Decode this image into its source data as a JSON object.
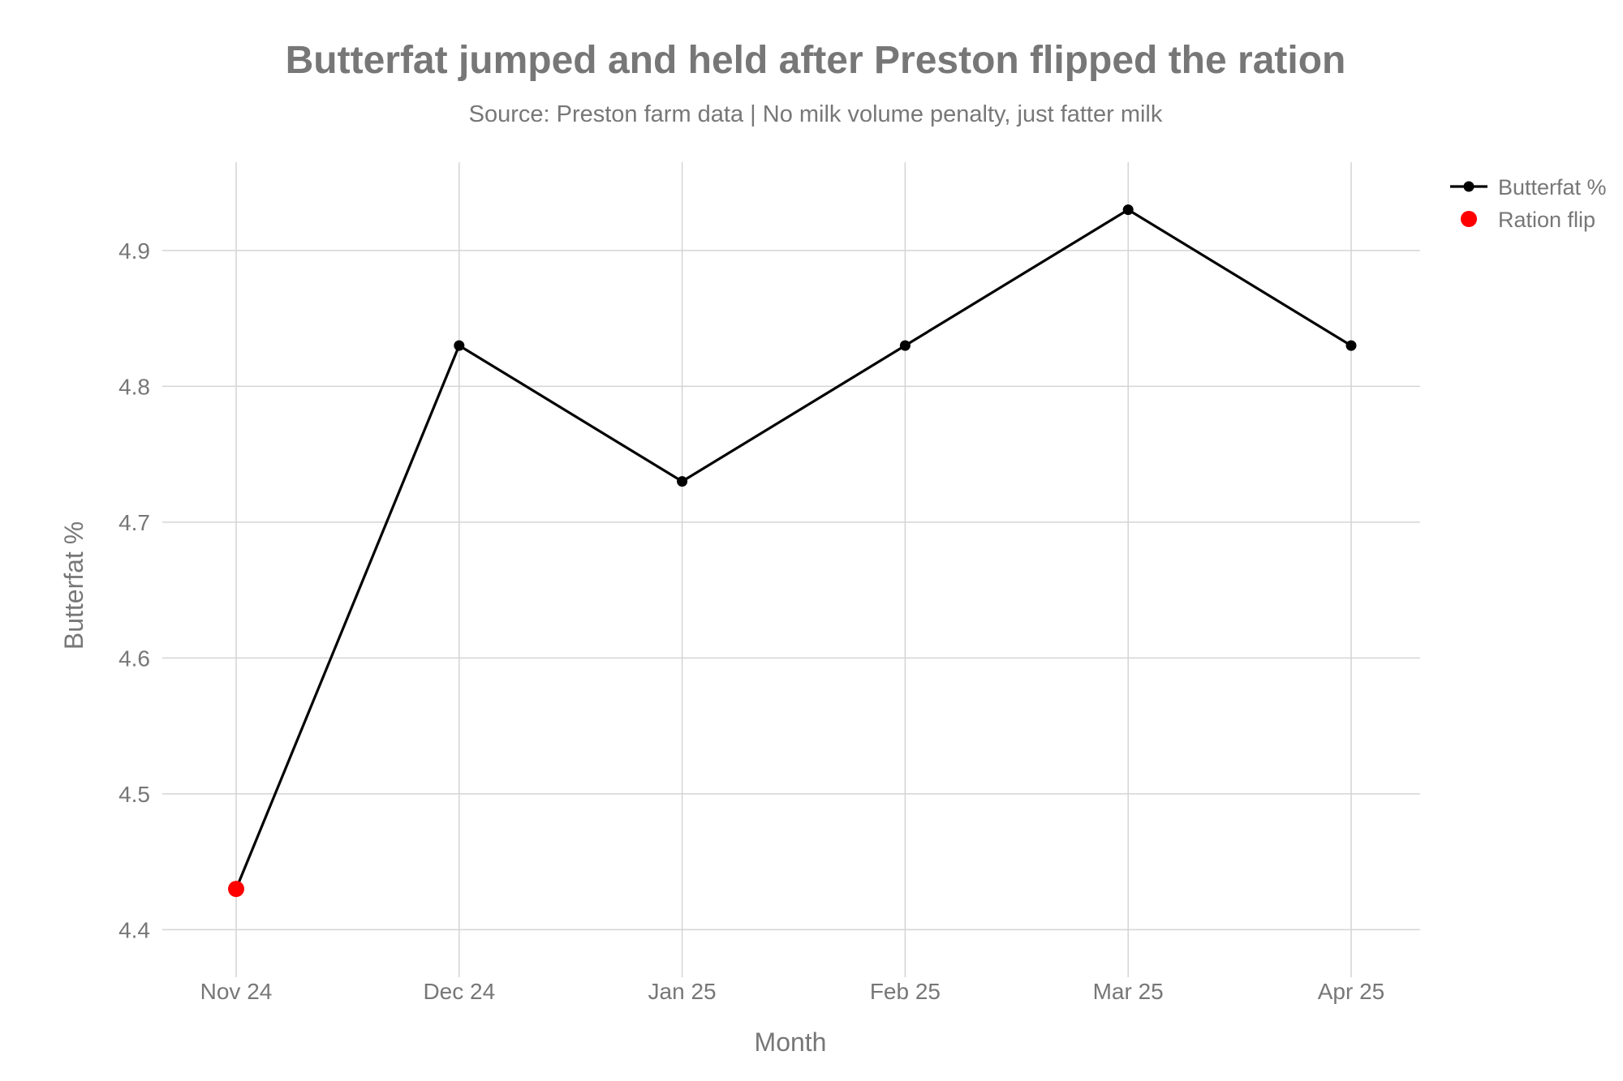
{
  "chart_data": {
    "type": "line",
    "title": "Butterfat jumped and held after Preston flipped the ration",
    "subtitle": "Source: Preston farm data | No milk volume penalty, just fatter milk",
    "xlabel": "Month",
    "ylabel": "Butterfat %",
    "categories": [
      "Nov 24",
      "Dec 24",
      "Jan 25",
      "Feb 25",
      "Mar 25",
      "Apr 25"
    ],
    "series": [
      {
        "name": "Butterfat %",
        "color": "#000000",
        "values": [
          4.43,
          4.83,
          4.73,
          4.83,
          4.93,
          4.83
        ]
      }
    ],
    "highlight": {
      "name": "Ration flip",
      "color": "#ff0000",
      "category": "Nov 24",
      "value": 4.43
    },
    "y_ticks": [
      "4.4",
      "4.5",
      "4.6",
      "4.7",
      "4.8",
      "4.9"
    ],
    "ylim": [
      4.365,
      4.965
    ],
    "grid": true,
    "legend_position": "top-right"
  }
}
